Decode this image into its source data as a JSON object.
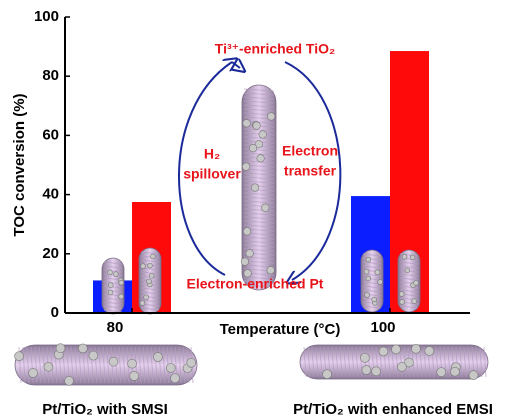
{
  "chart_data": {
    "type": "bar",
    "x_label": "Temperature (°C)",
    "y_label": "TOC conversion (%)",
    "categories": [
      "80",
      "100"
    ],
    "series": [
      {
        "color": "#0a1eff",
        "values": [
          11,
          39.5
        ]
      },
      {
        "color": "#ff0a0a",
        "values": [
          37.5,
          88.5
        ]
      }
    ],
    "ylim": [
      0,
      100
    ],
    "yticks": [
      0,
      20,
      40,
      60,
      80,
      100
    ],
    "annotations": {
      "top": "Ti³⁺-enriched TiO₂",
      "left": [
        "H₂",
        "spillover"
      ],
      "right": [
        "Electron",
        "transfer"
      ],
      "bottom": "Electron-enriched Pt"
    },
    "captions": [
      "Pt/TiO₂ with SMSI",
      "Pt/TiO₂ with enhanced EMSI"
    ]
  }
}
